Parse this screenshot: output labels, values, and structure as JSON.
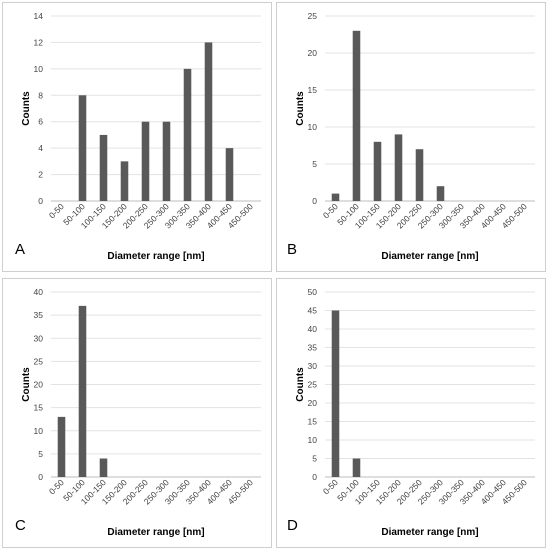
{
  "chart_data": [
    {
      "panel": "A",
      "type": "bar",
      "xlabel": "Diameter range [nm]",
      "ylabel": "Counts",
      "categories": [
        "0-50",
        "50-100",
        "100-150",
        "150-200",
        "200-250",
        "250-300",
        "300-350",
        "350-400",
        "400-450",
        "450-500"
      ],
      "values": [
        0,
        8,
        5,
        3,
        6,
        6,
        10,
        12,
        4,
        0
      ],
      "ylim": [
        0,
        14
      ],
      "yticks": [
        0,
        2,
        4,
        6,
        8,
        10,
        12,
        14
      ],
      "grid": true,
      "color": "#595959"
    },
    {
      "panel": "B",
      "type": "bar",
      "xlabel": "Diameter range [nm]",
      "ylabel": "Counts",
      "categories": [
        "0-50",
        "50-100",
        "100-150",
        "150-200",
        "200-250",
        "250-300",
        "300-350",
        "350-400",
        "400-450",
        "450-500"
      ],
      "values": [
        1,
        23,
        8,
        9,
        7,
        2,
        0,
        0,
        0,
        0
      ],
      "ylim": [
        0,
        25
      ],
      "yticks": [
        0,
        5,
        10,
        15,
        20,
        25
      ],
      "grid": true,
      "color": "#595959"
    },
    {
      "panel": "C",
      "type": "bar",
      "xlabel": "Diameter range [nm]",
      "ylabel": "Counts",
      "categories": [
        "0-50",
        "50-100",
        "100-150",
        "150-200",
        "200-250",
        "250-300",
        "300-350",
        "350-400",
        "400-450",
        "450-500"
      ],
      "values": [
        13,
        37,
        4,
        0,
        0,
        0,
        0,
        0,
        0,
        0
      ],
      "ylim": [
        0,
        40
      ],
      "yticks": [
        0,
        5,
        10,
        15,
        20,
        25,
        30,
        35,
        40
      ],
      "grid": true,
      "color": "#595959"
    },
    {
      "panel": "D",
      "type": "bar",
      "xlabel": "Diameter range [nm]",
      "ylabel": "Counts",
      "categories": [
        "0-50",
        "50-100",
        "100-150",
        "150-200",
        "200-250",
        "250-300",
        "300-350",
        "350-400",
        "400-450",
        "450-500"
      ],
      "values": [
        45,
        5,
        0,
        0,
        0,
        0,
        0,
        0,
        0,
        0
      ],
      "ylim": [
        0,
        50
      ],
      "yticks": [
        0,
        5,
        10,
        15,
        20,
        25,
        30,
        35,
        40,
        45,
        50
      ],
      "grid": true,
      "color": "#595959"
    }
  ]
}
